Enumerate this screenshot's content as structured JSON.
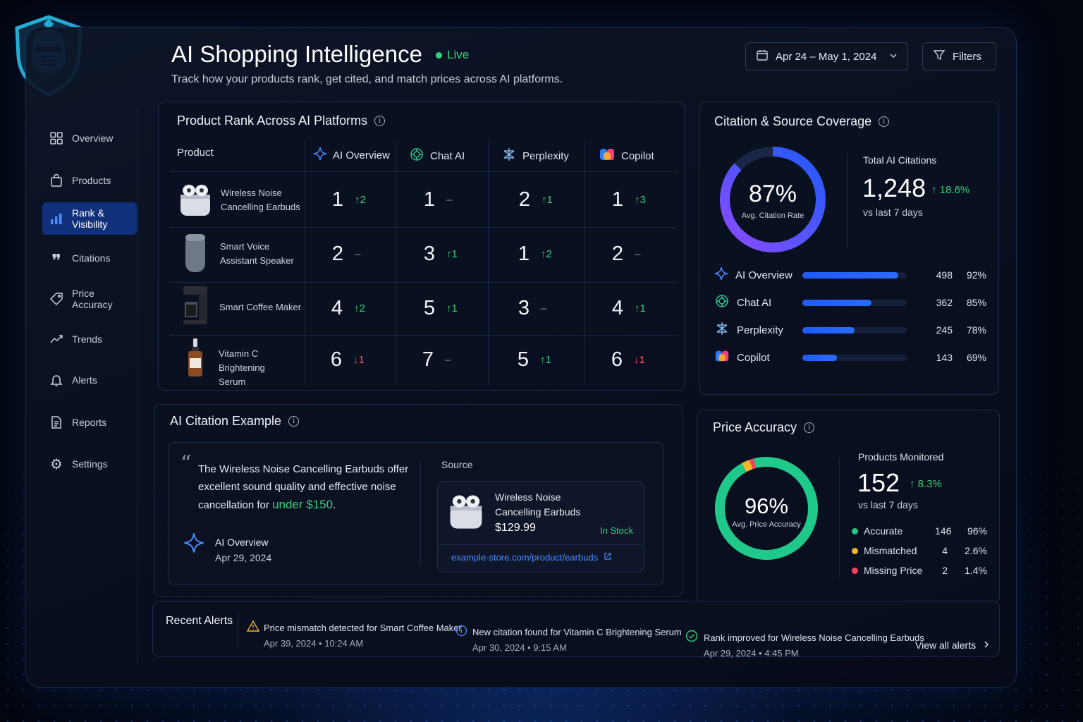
{
  "header": {
    "title": "AI Shopping Intelligence",
    "live_label": "Live",
    "subtitle": "Track how your products rank, get cited, and match prices across AI platforms.",
    "date_range": "Apr 24 – May 1, 2024",
    "filters_label": "Filters"
  },
  "sidebar": {
    "items": [
      {
        "label": "Overview",
        "icon": "grid-icon"
      },
      {
        "label": "Products",
        "icon": "bag-icon"
      },
      {
        "label": "Rank & Visibility",
        "icon": "bar-chart-icon",
        "active": true
      },
      {
        "label": "Citations",
        "icon": "quote-icon"
      },
      {
        "label": "Price Accuracy",
        "icon": "tag-icon"
      },
      {
        "label": "Trends",
        "icon": "trend-icon"
      },
      {
        "label": "Alerts",
        "icon": "bell-icon"
      },
      {
        "label": "Reports",
        "icon": "document-icon"
      },
      {
        "label": "Settings",
        "icon": "gear-icon"
      }
    ]
  },
  "rank": {
    "title": "Product Rank Across AI Platforms",
    "col_product": "Product",
    "platforms": [
      "AI Overview",
      "Chat AI",
      "Perplexity",
      "Copilot"
    ],
    "rows": [
      {
        "name": "Wireless Noise Cancelling Earbuds",
        "cells": [
          {
            "rank": "1",
            "change": "↑2",
            "dir": "up"
          },
          {
            "rank": "1",
            "change": "–",
            "dir": "none"
          },
          {
            "rank": "2",
            "change": "↑1",
            "dir": "up"
          },
          {
            "rank": "1",
            "change": "↑3",
            "dir": "up"
          }
        ]
      },
      {
        "name": "Smart Voice Assistant Speaker",
        "cells": [
          {
            "rank": "2",
            "change": "–",
            "dir": "none"
          },
          {
            "rank": "3",
            "change": "↑1",
            "dir": "up"
          },
          {
            "rank": "1",
            "change": "↑2",
            "dir": "up"
          },
          {
            "rank": "2",
            "change": "–",
            "dir": "none"
          }
        ]
      },
      {
        "name": "Smart Coffee Maker",
        "cells": [
          {
            "rank": "4",
            "change": "↑2",
            "dir": "up"
          },
          {
            "rank": "5",
            "change": "↑1",
            "dir": "up"
          },
          {
            "rank": "3",
            "change": "–",
            "dir": "none"
          },
          {
            "rank": "4",
            "change": "↑1",
            "dir": "up"
          }
        ]
      },
      {
        "name": "Vitamin C Brightening Serum",
        "cells": [
          {
            "rank": "6",
            "change": "↓1",
            "dir": "down"
          },
          {
            "rank": "7",
            "change": "–",
            "dir": "none"
          },
          {
            "rank": "5",
            "change": "↑1",
            "dir": "up"
          },
          {
            "rank": "6",
            "change": "↓1",
            "dir": "down"
          }
        ]
      }
    ]
  },
  "citation": {
    "title": "Citation & Source Coverage",
    "avg_rate": "87%",
    "avg_rate_label": "Avg. Citation Rate",
    "avg_rate_value": 0.87,
    "total_label": "Total AI Citations",
    "total": "1,248",
    "total_change": "↑ 18.6%",
    "vs_label": "vs last 7 days",
    "platforms": [
      {
        "name": "AI Overview",
        "count": "498",
        "pct": "92%",
        "fill": 0.92
      },
      {
        "name": "Chat AI",
        "count": "362",
        "pct": "85%",
        "fill": 0.66
      },
      {
        "name": "Perplexity",
        "count": "245",
        "pct": "78%",
        "fill": 0.5
      },
      {
        "name": "Copilot",
        "count": "143",
        "pct": "69%",
        "fill": 0.33
      }
    ]
  },
  "example": {
    "title": "AI Citation Example",
    "quote_before": "The Wireless Noise Cancelling Earbuds offer excellent sound quality and effective noise cancellation for ",
    "quote_highlight": "under $150",
    "quote_after": ".",
    "platform": "AI Overview",
    "date": "Apr 29, 2024",
    "source_label": "Source",
    "source_product": "Wireless Noise Cancelling Earbuds",
    "source_price": "$129.99",
    "source_stock": "In Stock",
    "source_url": "example-store.com/product/earbuds"
  },
  "price": {
    "title": "Price Accuracy",
    "avg": "96%",
    "avg_label": "Avg. Price Accuracy",
    "monitored_label": "Products Monitored",
    "monitored": "152",
    "monitored_change": "↑ 8.3%",
    "vs_label": "vs last 7 days",
    "legend": [
      {
        "name": "Accurate",
        "count": "146",
        "pct": "96%",
        "color": "#1fc98a",
        "share": 0.96
      },
      {
        "name": "Mismatched",
        "count": "4",
        "pct": "2.6%",
        "color": "#f2b62c",
        "share": 0.026
      },
      {
        "name": "Missing Price",
        "count": "2",
        "pct": "1.4%",
        "color": "#f0455a",
        "share": 0.014
      }
    ]
  },
  "alerts": {
    "title": "Recent Alerts",
    "items": [
      {
        "text": "Price mismatch detected for Smart Coffee Maker",
        "time": "Apr 39, 2024  •  10:24 AM",
        "icon": "warning-icon"
      },
      {
        "text": "New citation found for Vitamin C Brightening Serum",
        "time": "Apr 30, 2024  •  9:15 AM",
        "icon": "info-icon"
      },
      {
        "text": "Rank improved for Wireless Noise Cancelling Earbuds",
        "time": "Apr 29, 2024  •  4:45 PM",
        "icon": "check-circle-icon"
      }
    ],
    "view_all": "View all alerts"
  },
  "colors": {
    "accent": "#1f5bff",
    "up": "#33d07a",
    "down": "#ff5a5a",
    "live": "#34d27a"
  }
}
